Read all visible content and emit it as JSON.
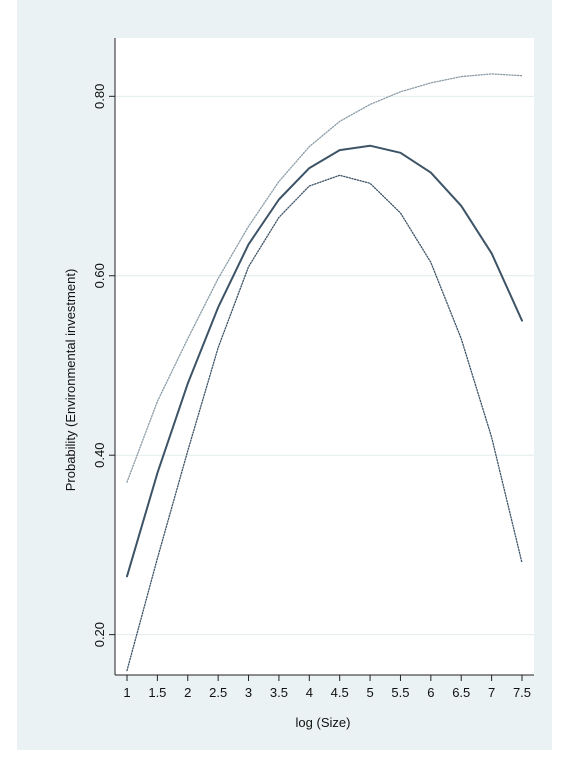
{
  "chart_data": {
    "type": "line",
    "xlabel": "log (Size)",
    "ylabel": "Probability (Environmental investment)",
    "xlim": [
      1,
      7.5
    ],
    "ylim": [
      0.155,
      0.865
    ],
    "x_ticks": [
      "1",
      "1.5",
      "2",
      "2.5",
      "3",
      "3.5",
      "4",
      "4.5",
      "5",
      "5.5",
      "6",
      "6.5",
      "7",
      "7.5"
    ],
    "y_ticks": [
      "0.20",
      "0.40",
      "0.60",
      "0.80"
    ],
    "y_tick_values": [
      0.2,
      0.4,
      0.6,
      0.8
    ],
    "grid": "horizontal",
    "background_color": "#eaf2f3",
    "series": [
      {
        "role": "upper_ci",
        "style": "dotted",
        "color": "#8a9ba6",
        "x": [
          1,
          1.5,
          2,
          2.5,
          3,
          3.5,
          4,
          4.5,
          5,
          5.5,
          6,
          6.5,
          7,
          7.5
        ],
        "y": [
          0.37,
          0.46,
          0.53,
          0.597,
          0.655,
          0.705,
          0.744,
          0.772,
          0.791,
          0.805,
          0.815,
          0.822,
          0.825,
          0.823
        ]
      },
      {
        "role": "estimate",
        "style": "solid",
        "color": "#3d5366",
        "x": [
          1,
          1.5,
          2,
          2.5,
          3,
          3.5,
          4,
          4.5,
          5,
          5.5,
          6,
          6.5,
          7,
          7.5
        ],
        "y": [
          0.265,
          0.38,
          0.48,
          0.565,
          0.635,
          0.685,
          0.72,
          0.74,
          0.745,
          0.737,
          0.715,
          0.678,
          0.625,
          0.55
        ]
      },
      {
        "role": "lower_ci",
        "style": "dotted",
        "color": "#3d5366",
        "x": [
          1,
          1.5,
          2,
          2.5,
          3,
          3.5,
          4,
          4.5,
          5,
          5.5,
          6,
          6.5,
          7,
          7.5
        ],
        "y": [
          0.16,
          0.285,
          0.405,
          0.52,
          0.61,
          0.665,
          0.7,
          0.712,
          0.703,
          0.67,
          0.615,
          0.53,
          0.42,
          0.28
        ]
      }
    ]
  }
}
